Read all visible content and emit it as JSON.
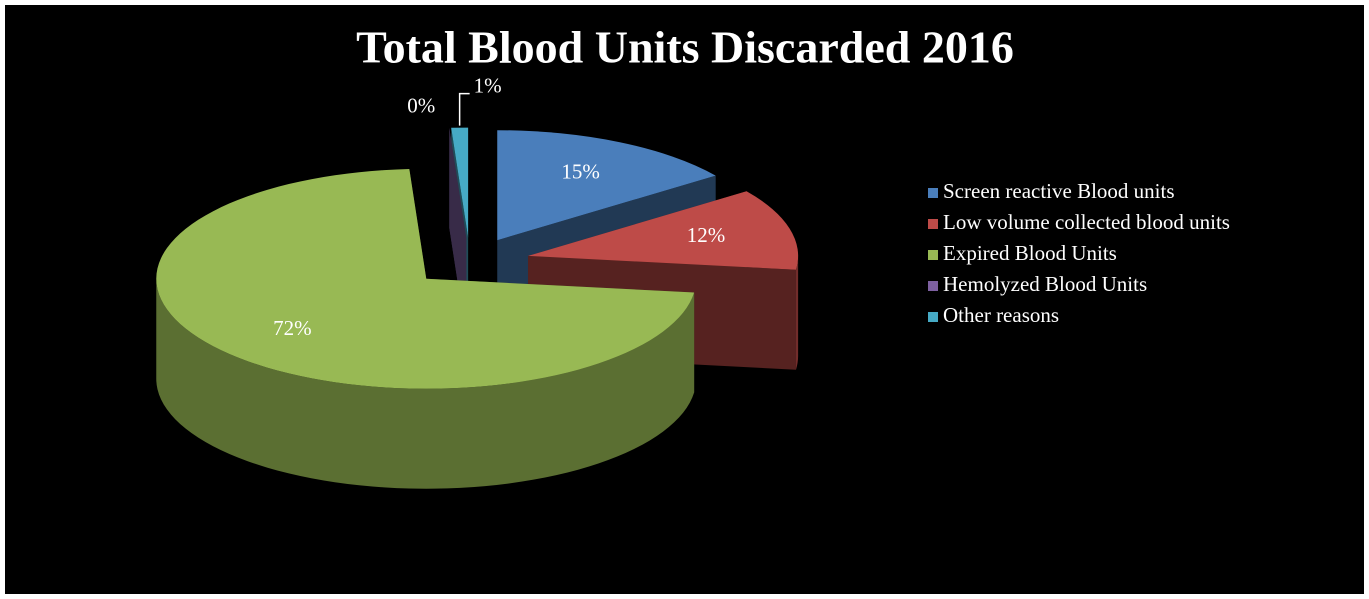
{
  "chart_data": {
    "type": "pie",
    "title": "Total Blood Units Discarded 2016",
    "categories": [
      "Screen reactive Blood units",
      "Low volume collected blood units",
      "Expired Blood Units",
      "Hemolyzed Blood Units",
      "Other reasons"
    ],
    "values": [
      15,
      12,
      72,
      0,
      1
    ],
    "value_labels": [
      "15%",
      "12%",
      "72%",
      "0%",
      "1%"
    ],
    "colors": [
      "#4a7ebb",
      "#be4b48",
      "#98b954",
      "#7d60a0",
      "#46aac5"
    ],
    "legend": "right"
  }
}
